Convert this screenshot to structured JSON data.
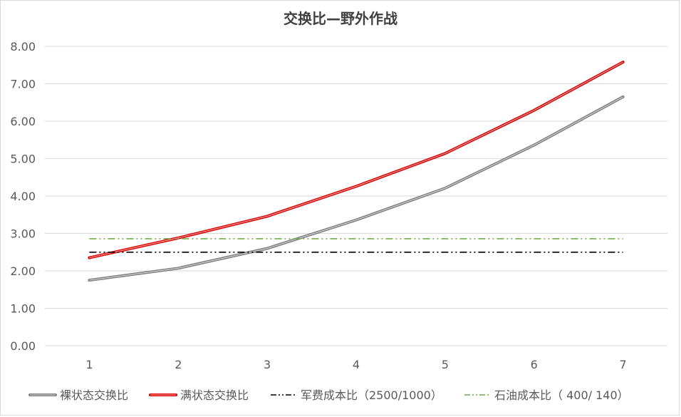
{
  "chart_data": {
    "type": "line",
    "title": "交换比—野外作战",
    "xlabel": "",
    "ylabel": "",
    "categories": [
      "1",
      "2",
      "3",
      "4",
      "5",
      "6",
      "7"
    ],
    "y_tick_labels": [
      "0.00",
      "1.00",
      "2.00",
      "3.00",
      "4.00",
      "5.00",
      "6.00",
      "7.00",
      "8.00"
    ],
    "ylim": [
      0,
      8
    ],
    "grid": true,
    "legend_position": "bottom",
    "series": [
      {
        "name": "裸状态交换比",
        "values": [
          1.75,
          2.07,
          2.6,
          3.36,
          4.21,
          5.36,
          6.65
        ],
        "color": "#808080",
        "style": "solid"
      },
      {
        "name": "满状态交换比",
        "values": [
          2.35,
          2.88,
          3.46,
          4.26,
          5.14,
          6.29,
          7.58
        ],
        "color": "#e00000",
        "style": "solid"
      },
      {
        "name": "军费成本比（2500/1000）",
        "values": [
          2.5,
          2.5,
          2.5,
          2.5,
          2.5,
          2.5,
          2.5
        ],
        "color": "#000000",
        "style": "dash-dot-dot"
      },
      {
        "name": "石油成本比（ 400/ 140）",
        "values": [
          2.86,
          2.86,
          2.86,
          2.86,
          2.86,
          2.86,
          2.86
        ],
        "color": "#70ad47",
        "style": "dash-dot-dot"
      }
    ]
  }
}
